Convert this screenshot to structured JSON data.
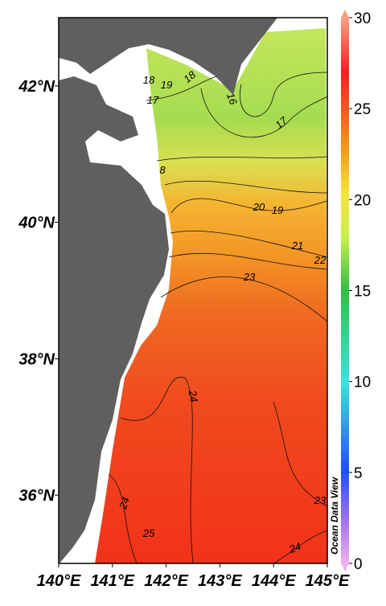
{
  "map": {
    "lonlim": [
      140,
      145
    ],
    "latlim": [
      35,
      43
    ],
    "lonticks": [
      {
        "value": 140,
        "label": "140°E"
      },
      {
        "value": 141,
        "label": "141°E"
      },
      {
        "value": 142,
        "label": "142°E"
      },
      {
        "value": 143,
        "label": "143°E"
      },
      {
        "value": 144,
        "label": "144°E"
      },
      {
        "value": 145,
        "label": "145°E"
      }
    ],
    "latticks": [
      {
        "value": 36,
        "label": "36°N"
      },
      {
        "value": 38,
        "label": "38°N"
      },
      {
        "value": 40,
        "label": "40°N"
      },
      {
        "value": 42,
        "label": "42°N"
      }
    ],
    "grid": true,
    "colorbar": {
      "lim": [
        0,
        30
      ],
      "ticks": [
        0,
        5,
        10,
        15,
        20,
        25,
        30
      ]
    },
    "contour_labels": [
      18,
      19,
      18,
      16,
      17,
      17,
      8,
      20,
      19,
      21,
      22,
      23,
      24,
      24,
      25,
      23,
      24
    ],
    "watermark": "Ocean Data View"
  }
}
